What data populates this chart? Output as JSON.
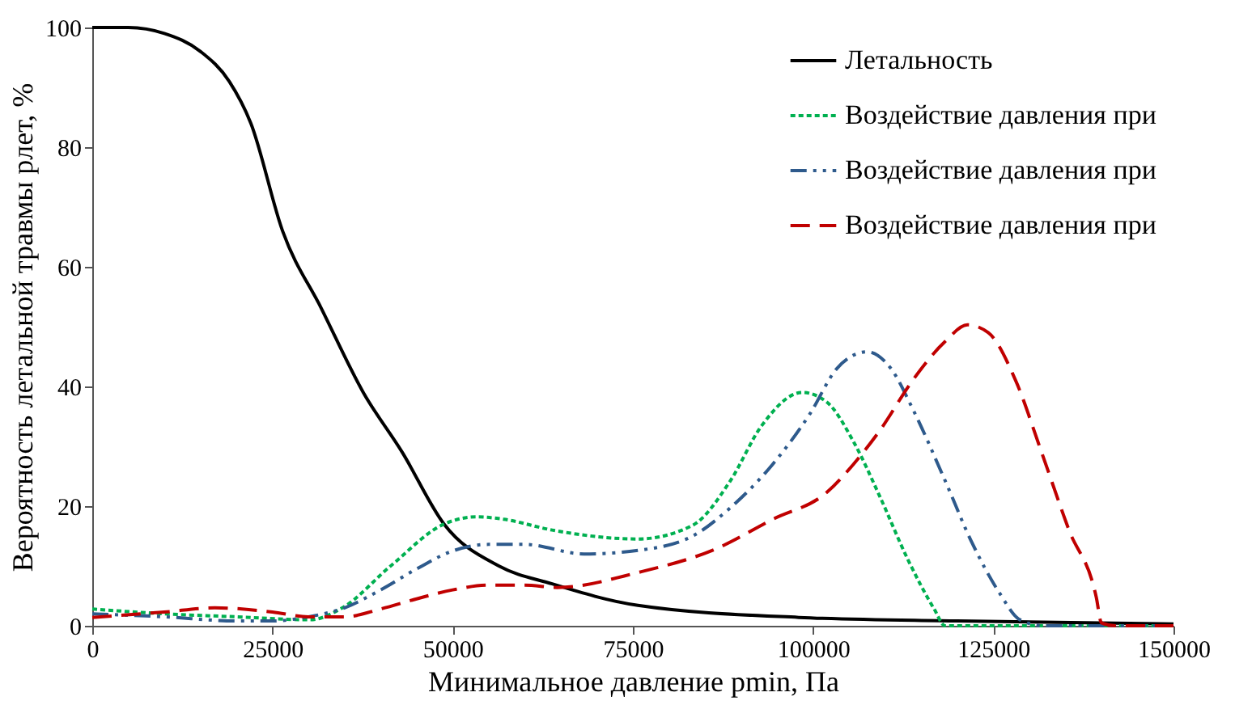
{
  "chart_data": {
    "type": "line",
    "xlabel": "Минимальное давление pmin, Па",
    "ylabel": "Вероятность летальной травмы pлет, %",
    "xlim": [
      0,
      150000
    ],
    "xticks": [
      0,
      25000,
      50000,
      75000,
      100000,
      125000,
      150000
    ],
    "ylim": [
      0,
      100
    ],
    "yticks": [
      0,
      20,
      40,
      60,
      80,
      100
    ],
    "grid": false,
    "legend": "top right",
    "marker": "none",
    "series": [
      {
        "name": "Летальность",
        "color": "#000000",
        "line_style": "solid",
        "x": [
          0,
          5000,
          10000,
          15000,
          19000,
          22000,
          26400,
          31800,
          37600,
          43000,
          48800,
          56400,
          63800,
          75700,
          98000,
          120000,
          150000
        ],
        "values": [
          100,
          100,
          99,
          96,
          91,
          84,
          66,
          53,
          39,
          29,
          17,
          10,
          7,
          3.4,
          1.4,
          0.8,
          0.3
        ]
      },
      {
        "name": "Воздействие давления при",
        "color": "#00b050",
        "line_style": "dotted",
        "x": [
          0,
          10000,
          20000,
          30200,
          34700,
          41400,
          48800,
          53300,
          57100,
          63800,
          75700,
          83300,
          88400,
          92900,
          98500,
          101900,
          105600,
          109300,
          113100,
          116800,
          118300,
          150000
        ],
        "values": [
          2.8,
          2,
          1.5,
          1,
          3,
          10,
          17,
          18.2,
          17.8,
          16,
          14.5,
          16.8,
          24,
          33.5,
          39,
          37.4,
          30.8,
          21.5,
          11.2,
          2.8,
          0,
          0
        ]
      },
      {
        "name": "Воздействие давления при",
        "color": "#2e5a8c",
        "line_style": "dashdot",
        "x": [
          0,
          10000,
          20000,
          25000,
          30000,
          35000,
          40000,
          45000,
          50000,
          55000,
          60000,
          68200,
          75700,
          83300,
          88400,
          94400,
          99600,
          103300,
          107500,
          110800,
          113800,
          118300,
          122000,
          125800,
          128700,
          132000,
          150000
        ],
        "values": [
          2,
          1.5,
          0.8,
          0.8,
          1.5,
          3,
          6,
          9.5,
          12.5,
          13.6,
          13.6,
          12,
          12.6,
          15,
          19.6,
          27,
          35.5,
          43,
          45.8,
          43,
          36.3,
          24.3,
          14,
          5.6,
          1,
          0,
          0
        ]
      },
      {
        "name": "Воздействие давления при",
        "color": "#c00000",
        "line_style": "dashed",
        "x": [
          0,
          10000,
          17000,
          25000,
          30000,
          35000,
          40000,
          45000,
          50000,
          55000,
          60000,
          64500,
          75700,
          86800,
          94400,
          101900,
          105600,
          109300,
          113800,
          118300,
          121400,
          124300,
          128100,
          131700,
          135500,
          139300,
          140000,
          142000,
          150000
        ],
        "values": [
          1.4,
          2.3,
          3,
          2.3,
          1.5,
          1.5,
          2.8,
          4.5,
          6,
          6.8,
          6.8,
          6.4,
          8.9,
          13,
          17.8,
          22.3,
          27,
          32.7,
          41,
          47.5,
          50.3,
          49,
          41,
          29,
          16,
          4.7,
          0.5,
          0,
          0
        ]
      }
    ]
  }
}
